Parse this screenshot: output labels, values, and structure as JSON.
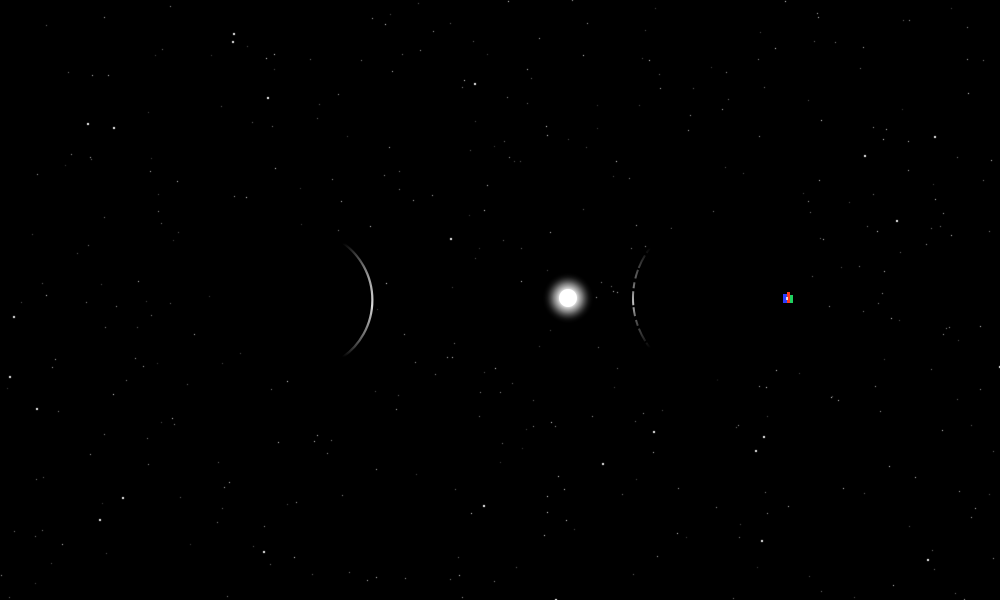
{
  "scene": {
    "background_color": "#000000",
    "star_color": "#ffffff",
    "star_count": 420
  },
  "objects": {
    "sun": {
      "name": "glowing-star",
      "color": "#ffffff"
    },
    "left_planet": {
      "name": "crescent-planet-left",
      "phase": "crescent-lit-right",
      "rim_color": "#c8c8c8"
    },
    "right_planet": {
      "name": "crescent-planet-right",
      "phase": "crescent-lit-left",
      "rim_color": "#b4b4b4"
    },
    "player_ship": {
      "name": "player-ship-icon",
      "colors": [
        "#2b3cff",
        "#ff3a1a",
        "#20d060"
      ]
    }
  }
}
